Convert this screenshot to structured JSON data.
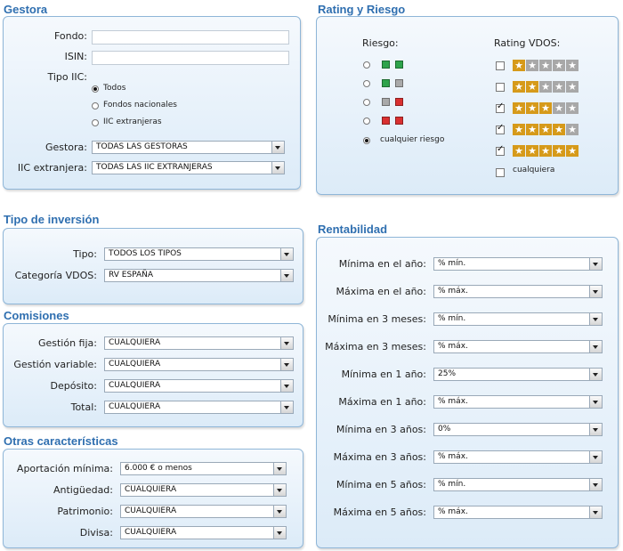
{
  "gestora": {
    "title": "Gestora",
    "fondo_label": "Fondo:",
    "fondo_value": "",
    "isin_label": "ISIN:",
    "isin_value": "",
    "tipo_label": "Tipo IIC:",
    "tipo_options": [
      "Todos",
      "Fondos nacionales",
      "IIC extranjeras"
    ],
    "tipo_selected": 0,
    "gestora_label": "Gestora:",
    "gestora_value": "TODAS LAS GESTORAS",
    "iic_label": "IIC extranjera:",
    "iic_value": "TODAS LAS IIC EXTRANJERAS"
  },
  "rating": {
    "title": "Rating y Riesgo",
    "riesgo_label": "Riesgo:",
    "riesgo_rows": [
      {
        "squares": [
          "green",
          "green"
        ],
        "selected": false
      },
      {
        "squares": [
          "green",
          "gray"
        ],
        "selected": false
      },
      {
        "squares": [
          "gray",
          "red"
        ],
        "selected": false
      },
      {
        "squares": [
          "red",
          "red"
        ],
        "selected": false
      }
    ],
    "riesgo_any": "cualquier riesgo",
    "riesgo_any_selected": true,
    "vdos_label": "Rating VDOS:",
    "vdos_rows": [
      {
        "stars": 1,
        "checked": false
      },
      {
        "stars": 2,
        "checked": false
      },
      {
        "stars": 3,
        "checked": true
      },
      {
        "stars": 4,
        "checked": true
      },
      {
        "stars": 5,
        "checked": true
      }
    ],
    "vdos_any": "cualquiera",
    "vdos_any_checked": false,
    "colors": {
      "green": "#2ea34b",
      "gray": "#a9a9a9",
      "red": "#d93030",
      "star_filled": "#d69a1a",
      "star_empty": "#a8a8a8"
    }
  },
  "inversion": {
    "title": "Tipo de inversión",
    "tipo_label": "Tipo:",
    "tipo_value": "TODOS LOS TIPOS",
    "categoria_label": "Categoría VDOS:",
    "categoria_value": "RV ESPAÑA"
  },
  "comisiones": {
    "title": "Comisiones",
    "rows": [
      {
        "label": "Gestión fija:",
        "value": "CUALQUIERA"
      },
      {
        "label": "Gestión variable:",
        "value": "CUALQUIERA"
      },
      {
        "label": "Depósito:",
        "value": "CUALQUIERA"
      },
      {
        "label": "Total:",
        "value": "CUALQUIERA"
      }
    ]
  },
  "otras": {
    "title": "Otras características",
    "rows": [
      {
        "label": "Aportación mínima:",
        "value": "6.000 € o menos"
      },
      {
        "label": "Antigüedad:",
        "value": "CUALQUIERA"
      },
      {
        "label": "Patrimonio:",
        "value": "CUALQUIERA"
      },
      {
        "label": "Divisa:",
        "value": "CUALQUIERA"
      }
    ]
  },
  "rentabilidad": {
    "title": "Rentabilidad",
    "rows": [
      {
        "label": "Mínima en el año:",
        "value": "% mín."
      },
      {
        "label": "Máxima en el año:",
        "value": "% máx."
      },
      {
        "label": "Mínima en 3 meses:",
        "value": "% mín."
      },
      {
        "label": "Máxima en 3 meses:",
        "value": "% máx."
      },
      {
        "label": "Mínima en 1 año:",
        "value": "25%"
      },
      {
        "label": "Máxima en 1 año:",
        "value": "% máx."
      },
      {
        "label": "Mínima en 3 años:",
        "value": "0%"
      },
      {
        "label": "Máxima en 3 años:",
        "value": "% máx."
      },
      {
        "label": "Mínima en 5 años:",
        "value": "% mín."
      },
      {
        "label": "Máxima en 5 años:",
        "value": "% máx."
      }
    ]
  }
}
